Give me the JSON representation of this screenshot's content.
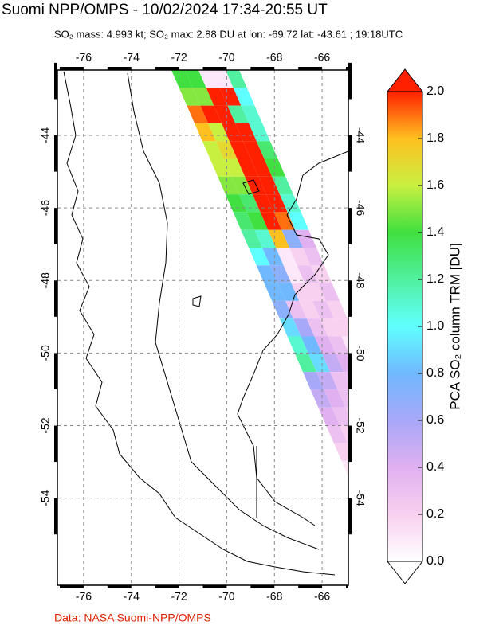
{
  "map": {
    "title": "Suomi NPP/OMPS - 10/02/2024 17:34-20:55 UT",
    "subtitle": "SO₂ mass: 4.993 kt; SO₂ max: 2.88 DU at lon: -69.72 lat: -43.61 ; 19:18UTC",
    "credit": "Data: NASA Suomi-NPP/OMPS",
    "colorbar_label": "PCA SO₂ column TRM [DU]",
    "xlim": [
      -77.1,
      -64.9
    ],
    "ylim": [
      -42.2,
      -56.4
    ],
    "xticks": [
      -76,
      -74,
      -72,
      -70,
      -68,
      -66
    ],
    "yticks": [
      -44,
      -46,
      -48,
      -50,
      -52,
      -54
    ],
    "clim": [
      0,
      2
    ],
    "cticks": [
      {
        "value": 0,
        "label": "0.0"
      },
      {
        "value": 0.2,
        "label": "0.2"
      },
      {
        "value": 0.4,
        "label": "0.4"
      },
      {
        "value": 0.6,
        "label": "0.6"
      },
      {
        "value": 0.8,
        "label": "0.8"
      },
      {
        "value": 1.0,
        "label": "1.0"
      },
      {
        "value": 1.2,
        "label": "1.2"
      },
      {
        "value": 1.4,
        "label": "1.4"
      },
      {
        "value": 1.6,
        "label": "1.6"
      },
      {
        "value": 1.8,
        "label": "1.8"
      },
      {
        "value": 2.0,
        "label": "2.0"
      }
    ],
    "colormap": [
      "#ffffff",
      "#f8d0f0",
      "#e0b0f0",
      "#a8a8f8",
      "#70b8ff",
      "#60ffff",
      "#50f0a0",
      "#40e040",
      "#c8f040",
      "#ffc020",
      "#ff2000"
    ],
    "swath_rows": [
      [
        1.4,
        1.4,
        0.1,
        0.1,
        1.2
      ],
      [
        1.5,
        1.5,
        2.0,
        2.0,
        1.0
      ],
      [
        1.9,
        2.0,
        2.0,
        1.2,
        1.1
      ],
      [
        1.8,
        1.6,
        2.0,
        2.0,
        1.1
      ],
      [
        1.6,
        1.7,
        2.0,
        2.0,
        1.3
      ],
      [
        1.6,
        1.6,
        2.0,
        2.0,
        1.4
      ],
      [
        1.5,
        1.5,
        2.0,
        2.0,
        1.2
      ],
      [
        1.4,
        1.3,
        2.0,
        2.0,
        1.1
      ],
      [
        1.3,
        1.4,
        2.0,
        1.9,
        1.0
      ],
      [
        1.2,
        1.1,
        1.8,
        0.7,
        0.4
      ],
      [
        1.0,
        0.8,
        0.1,
        0.2,
        0.3
      ],
      [
        0.8,
        0.7,
        0.1,
        0.3,
        0.2
      ],
      [
        0.8,
        0.8,
        0.2,
        0.2,
        0.3
      ],
      [
        0.7,
        0.3,
        0.2,
        0.3,
        0.2
      ],
      [
        0.9,
        0.6,
        0.3,
        0.2,
        0.2
      ],
      [
        1.1,
        0.8,
        0.4,
        0.3,
        0.1
      ],
      [
        1.2,
        0.9,
        0.5,
        0.4,
        0.3
      ],
      [
        0.6,
        0.5,
        0.3,
        0.3,
        0.2
      ],
      [
        0.5,
        0.4,
        0.3,
        0.2,
        0.1
      ],
      [
        0.4,
        0.3,
        0.2,
        0.1,
        0.1
      ],
      [
        0.3,
        0.2,
        0.2,
        0.1,
        0.1
      ],
      [
        0.2,
        0.2,
        0.1,
        0.1,
        0.1
      ],
      [
        0.1,
        0.1,
        0.1,
        0.1,
        0.1
      ]
    ]
  }
}
